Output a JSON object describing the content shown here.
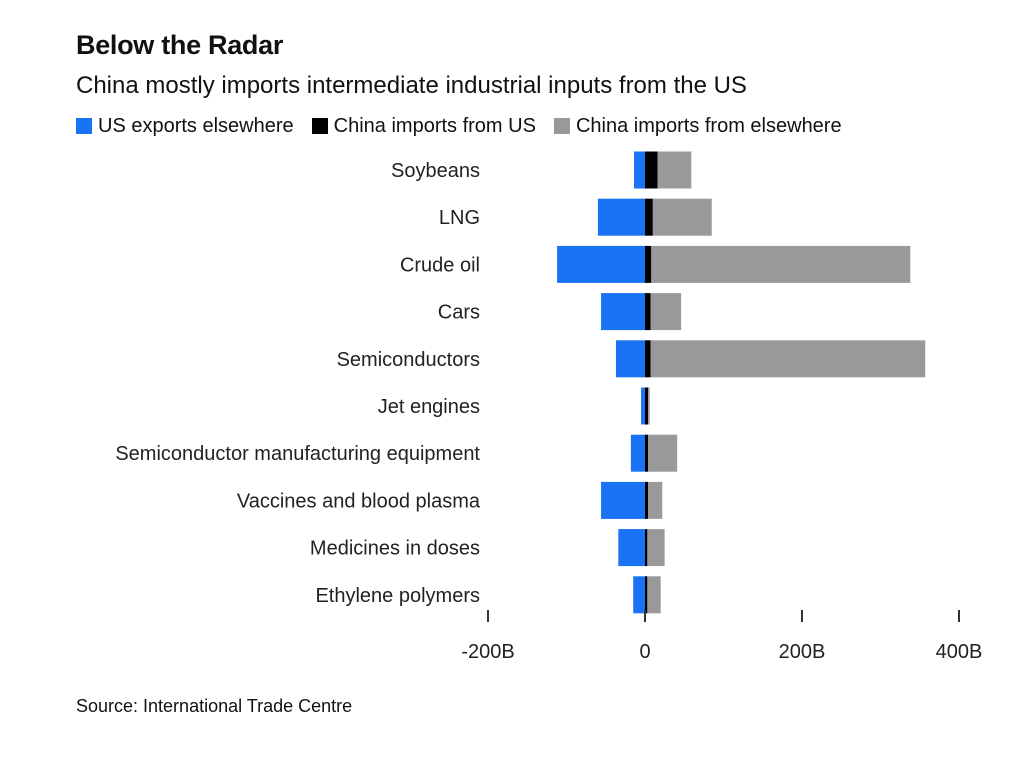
{
  "title": "Below the Radar",
  "subtitle": "China mostly imports intermediate industrial inputs from the US",
  "source": "Source: International Trade Centre",
  "colors": {
    "us_exports_elsewhere": "#1a73f5",
    "china_imports_from_us": "#000000",
    "china_imports_from_elsewhere": "#999999"
  },
  "chart_data": {
    "type": "bar",
    "orientation": "horizontal",
    "stacked": true,
    "title": "Below the Radar",
    "subtitle": "China mostly imports intermediate industrial inputs from the US",
    "categories": [
      "Soybeans",
      "LNG",
      "Crude oil",
      "Cars",
      "Semiconductors",
      "Jet engines",
      "Semiconductor manufacturing equipment",
      "Vaccines and blood plasma",
      "Medicines in doses",
      "Ethylene polymers"
    ],
    "series": [
      {
        "name": "US exports elsewhere",
        "color": "#1a73f5",
        "values": [
          -14,
          -60,
          -112,
          -56,
          -37,
          -5,
          -18,
          -56,
          -34,
          -15
        ]
      },
      {
        "name": "China imports from US",
        "color": "#000000",
        "values": [
          16,
          10,
          8,
          7,
          7,
          4,
          4,
          4,
          3,
          3
        ]
      },
      {
        "name": "China imports from elsewhere",
        "color": "#999999",
        "values": [
          43,
          75,
          330,
          39,
          350,
          2,
          37,
          18,
          22,
          17
        ]
      }
    ],
    "xlim": [
      -240,
      410
    ],
    "xticks": [
      -200,
      0,
      200,
      400
    ],
    "xtick_labels": [
      "-200B",
      "0",
      "200B",
      "400B"
    ],
    "legend_position": "top-left",
    "grid": false
  }
}
